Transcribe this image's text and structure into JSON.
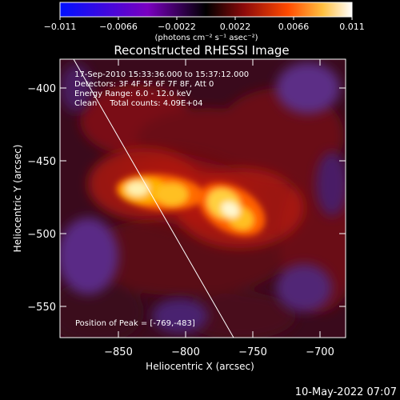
{
  "colorbar": {
    "ticks": [
      "−0.011",
      "−0.0066",
      "−0.0022",
      "0.0022",
      "0.0066",
      "0.011"
    ],
    "units": "(photons cm⁻² s⁻¹ asec⁻²)"
  },
  "title": "Reconstructed RHESSI Image",
  "info": {
    "time": "17-Sep-2010 15:33:36.000 to 15:37:12.000",
    "detectors": "Detectors: 3F 4F 5F 6F 7F 8F, Att 0",
    "energy": "Energy Range: 6.0 - 12.0 keV",
    "clean": "Clean     Total counts: 4.09E+04"
  },
  "peak": "Position of Peak = [-769,-483]",
  "axes": {
    "xlabel": "Heliocentric X (arcsec)",
    "ylabel": "Heliocentric Y (arcsec)",
    "xticks": [
      "−850",
      "−800",
      "−750",
      "−700"
    ],
    "yticks": [
      "−400",
      "−450",
      "−500",
      "−550"
    ]
  },
  "footer": "10-May-2022 07:07",
  "colors": {
    "background": "#000000",
    "limb": "#ffffff",
    "hot": "#ffffff",
    "warm": "#ffa11a",
    "mid": "#b40f0f",
    "cool": "#3b0a1a",
    "negative": "#5a2d86"
  }
}
